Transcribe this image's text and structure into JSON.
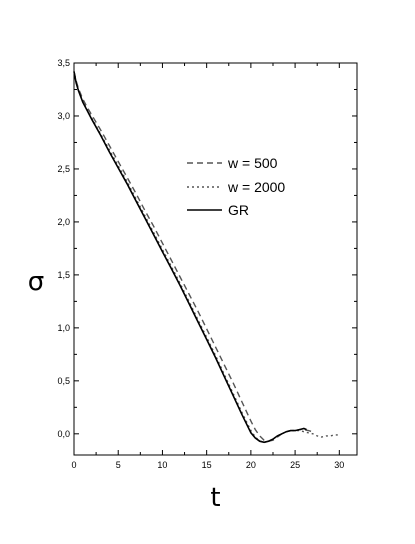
{
  "chart_data": {
    "type": "line",
    "title": "",
    "xlabel": "t",
    "ylabel": "σ",
    "xlim": [
      0,
      32
    ],
    "ylim": [
      -0.2,
      3.5
    ],
    "x_ticks": [
      0,
      5,
      10,
      15,
      20,
      25,
      30
    ],
    "x_tick_labels": [
      "0",
      "5",
      "10",
      "15",
      "20",
      "25",
      "30"
    ],
    "y_ticks": [
      0.0,
      0.5,
      1.0,
      1.5,
      2.0,
      2.5,
      3.0,
      3.5
    ],
    "y_tick_labels": [
      "0,0",
      "0,5",
      "1,0",
      "1,5",
      "2,0",
      "2,5",
      "3,0",
      "3,5"
    ],
    "grid": false,
    "legend_position": "top-right",
    "series": [
      {
        "name": "w = 500",
        "style": "dashed",
        "color": "#555555",
        "x": [
          0,
          0.25,
          0.5,
          1,
          1.5,
          2,
          3,
          4,
          5,
          6,
          7,
          8,
          9,
          10,
          11,
          12,
          13,
          14,
          15,
          16,
          17,
          18,
          19,
          20,
          20.5,
          21,
          21.5,
          22,
          22.5,
          23,
          23.5,
          24,
          24.5,
          25,
          25.5,
          26,
          26.5,
          27
        ],
        "y": [
          3.42,
          3.33,
          3.26,
          3.16,
          3.08,
          3.01,
          2.87,
          2.72,
          2.57,
          2.42,
          2.27,
          2.11,
          1.96,
          1.8,
          1.64,
          1.48,
          1.32,
          1.16,
          0.99,
          0.82,
          0.65,
          0.48,
          0.3,
          0.12,
          0.04,
          -0.02,
          -0.06,
          -0.07,
          -0.06,
          -0.03,
          0.0,
          0.02,
          0.03,
          0.03,
          0.04,
          0.04,
          0.03,
          0.02
        ]
      },
      {
        "name": "w = 2000",
        "style": "dotted",
        "color": "#555555",
        "x": [
          0,
          0.25,
          0.5,
          1,
          1.5,
          2,
          3,
          4,
          5,
          6,
          7,
          8,
          9,
          10,
          11,
          12,
          13,
          14,
          15,
          16,
          17,
          18,
          19,
          20,
          20.5,
          21,
          21.5,
          22,
          22.5,
          23,
          23.5,
          24,
          24.5,
          25,
          25.5,
          26,
          26.5,
          27,
          27.5,
          28,
          28.5,
          29,
          29.5,
          30
        ],
        "y": [
          3.42,
          3.32,
          3.25,
          3.14,
          3.06,
          2.98,
          2.83,
          2.68,
          2.53,
          2.38,
          2.22,
          2.06,
          1.9,
          1.74,
          1.58,
          1.42,
          1.25,
          1.08,
          0.91,
          0.74,
          0.56,
          0.38,
          0.2,
          0.03,
          -0.03,
          -0.07,
          -0.08,
          -0.07,
          -0.05,
          -0.02,
          0.0,
          0.02,
          0.03,
          0.03,
          0.03,
          0.02,
          0.01,
          0.0,
          -0.02,
          -0.03,
          -0.02,
          -0.02,
          -0.01,
          -0.01
        ]
      },
      {
        "name": "GR",
        "style": "solid",
        "color": "#000000",
        "x": [
          0,
          0.25,
          0.5,
          1,
          1.5,
          2,
          3,
          4,
          5,
          6,
          7,
          8,
          9,
          10,
          11,
          12,
          13,
          14,
          15,
          16,
          17,
          18,
          19,
          20,
          20.5,
          21,
          21.5,
          22,
          22.5,
          23,
          23.5,
          24,
          24.5,
          25,
          25.5,
          26,
          26.3
        ],
        "y": [
          3.42,
          3.31,
          3.24,
          3.13,
          3.05,
          2.97,
          2.82,
          2.66,
          2.51,
          2.36,
          2.2,
          2.04,
          1.88,
          1.72,
          1.56,
          1.4,
          1.23,
          1.06,
          0.89,
          0.72,
          0.54,
          0.36,
          0.18,
          0.01,
          -0.04,
          -0.07,
          -0.08,
          -0.07,
          -0.05,
          -0.02,
          0.0,
          0.02,
          0.03,
          0.03,
          0.04,
          0.05,
          0.04
        ]
      }
    ]
  }
}
